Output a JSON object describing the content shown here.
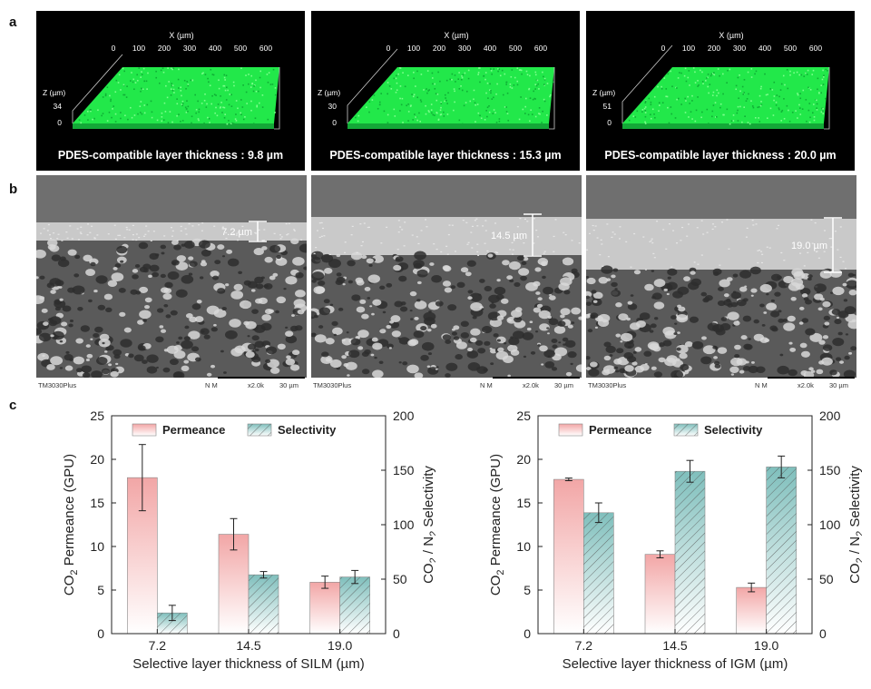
{
  "panels": {
    "a_label": "a",
    "b_label": "b",
    "c_label": "c"
  },
  "panel_a": [
    {
      "x_axis_title": "X (µm)",
      "x_ticks": [
        "0",
        "100",
        "200",
        "300",
        "400",
        "500",
        "600"
      ],
      "z_axis_title": "Z (µm)",
      "z_top": "34",
      "z_zero": "0",
      "caption": "PDES-compatible layer thickness : 9.8 µm"
    },
    {
      "x_axis_title": "X (µm)",
      "x_ticks": [
        "0",
        "100",
        "200",
        "300",
        "400",
        "500",
        "600"
      ],
      "z_axis_title": "Z (µm)",
      "z_top": "30",
      "z_zero": "0",
      "caption": "PDES-compatible layer thickness : 15.3 µm"
    },
    {
      "x_axis_title": "X (µm)",
      "x_ticks": [
        "0",
        "100",
        "200",
        "300",
        "400",
        "500",
        "600"
      ],
      "z_axis_title": "Z (µm)",
      "z_top": "51",
      "z_zero": "0",
      "caption": "PDES-compatible layer thickness : 20.0 µm"
    }
  ],
  "panel_b": [
    {
      "thickness": "7.2 µm",
      "instrument": "TM3030Plus",
      "mode": "N M",
      "mag": "x2.0k",
      "scale": "30 µm"
    },
    {
      "thickness": "14.5 µm",
      "instrument": "TM3030Plus",
      "mode": "N M",
      "mag": "x2.0k",
      "scale": "30 µm"
    },
    {
      "thickness": "19.0 µm",
      "instrument": "TM3030Plus",
      "mode": "N M",
      "mag": "x2.0k",
      "scale": "30 µm"
    }
  ],
  "colors": {
    "permeance": "#f2a6a6",
    "selectivity": "#7fbfbc",
    "panel_green": "#22e84a"
  },
  "chart_data": [
    {
      "type": "bar",
      "categories": [
        "7.2",
        "14.5",
        "19.0"
      ],
      "xlabel": "Selective layer thickness of SILM (µm)",
      "ylabel_left": "CO2 Permeance (GPU)",
      "ylabel_right": "CO2 / N2 Selectivity",
      "ylim_left": [
        0,
        25
      ],
      "ylim_right": [
        0,
        200
      ],
      "yticks_left": [
        "0",
        "5",
        "10",
        "15",
        "20",
        "25"
      ],
      "yticks_right": [
        "0",
        "50",
        "100",
        "150",
        "200"
      ],
      "legend": [
        "Permeance",
        "Selectivity"
      ],
      "legend_position": "top",
      "series": [
        {
          "name": "Permeance",
          "axis": "left",
          "values": [
            17.9,
            11.4,
            5.9
          ],
          "errors": [
            3.8,
            1.8,
            0.7
          ]
        },
        {
          "name": "Selectivity",
          "axis": "right",
          "values": [
            19,
            54,
            52
          ],
          "errors": [
            7,
            3,
            6
          ]
        }
      ]
    },
    {
      "type": "bar",
      "categories": [
        "7.2",
        "14.5",
        "19.0"
      ],
      "xlabel": "Selective layer thickness of IGM (µm)",
      "ylabel_left": "CO2 Permeance (GPU)",
      "ylabel_right": "CO2 / N2 Selectivity",
      "ylim_left": [
        0,
        25
      ],
      "ylim_right": [
        0,
        200
      ],
      "yticks_left": [
        "0",
        "5",
        "10",
        "15",
        "20",
        "25"
      ],
      "yticks_right": [
        "0",
        "50",
        "100",
        "150",
        "200"
      ],
      "legend": [
        "Permeance",
        "Selectivity"
      ],
      "legend_position": "top",
      "series": [
        {
          "name": "Permeance",
          "axis": "left",
          "values": [
            17.7,
            9.1,
            5.3
          ],
          "errors": [
            0.15,
            0.4,
            0.5
          ]
        },
        {
          "name": "Selectivity",
          "axis": "right",
          "values": [
            111,
            149,
            153
          ],
          "errors": [
            9,
            10,
            10
          ]
        }
      ]
    }
  ]
}
